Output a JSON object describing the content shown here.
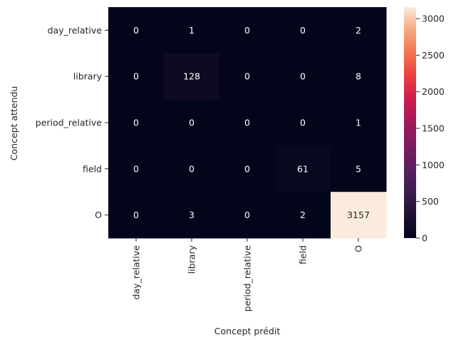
{
  "chart_data": {
    "type": "heatmap",
    "xlabel": "Concept prédit",
    "ylabel": "Concept attendu",
    "x_categories": [
      "day_relative",
      "library",
      "period_relative",
      "field",
      "O"
    ],
    "y_categories": [
      "day_relative",
      "library",
      "period_relative",
      "field",
      "O"
    ],
    "values": [
      [
        0,
        1,
        0,
        0,
        2
      ],
      [
        0,
        128,
        0,
        0,
        8
      ],
      [
        0,
        0,
        0,
        0,
        1
      ],
      [
        0,
        0,
        0,
        61,
        5
      ],
      [
        0,
        3,
        0,
        2,
        3157
      ]
    ],
    "colorbar": {
      "min": 0,
      "max": 3157,
      "ticks": [
        "0",
        "500",
        "1000",
        "1500",
        "2000",
        "2500",
        "3000"
      ]
    },
    "colormap": "rocket",
    "grid": false
  }
}
